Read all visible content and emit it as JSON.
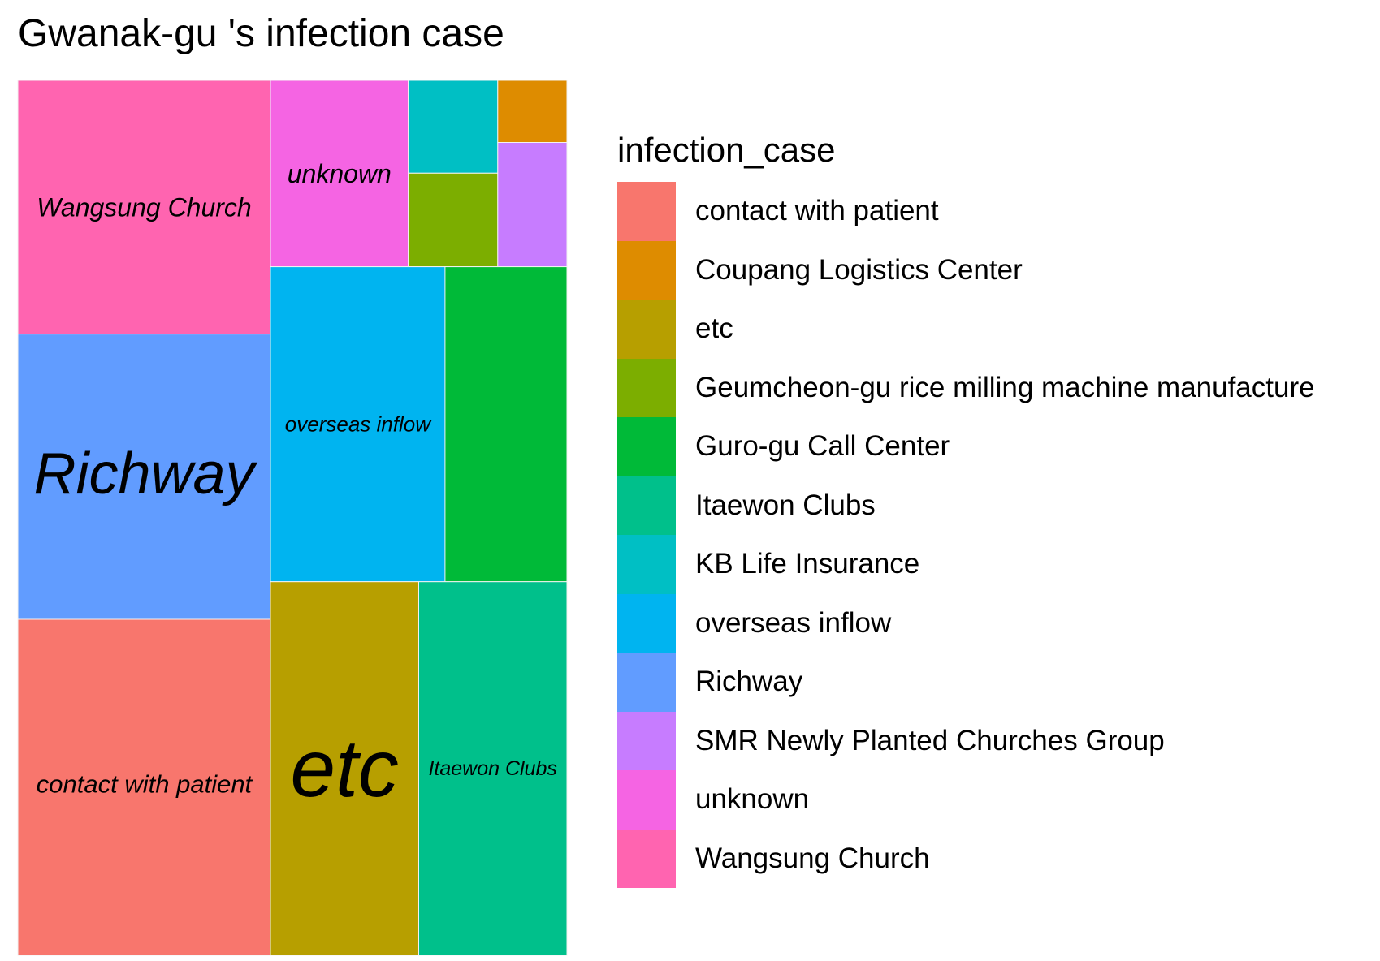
{
  "chart_data": {
    "type": "treemap",
    "title": "Gwanak-gu 's infection case",
    "legend": {
      "title": "infection_case",
      "placement": "right"
    },
    "tiles": [
      {
        "name": "contact with patient",
        "label": "contact with patient",
        "value": 24,
        "color": "#F8766D"
      },
      {
        "name": "Coupang Logistics Center",
        "label": "",
        "value": 1,
        "color": "#DE8C00"
      },
      {
        "name": "etc",
        "label": "etc",
        "value": 17,
        "color": "#B79F00"
      },
      {
        "name": "Geumcheon-gu rice milling machine manufacture",
        "label": "",
        "value": 2,
        "color": "#7CAE00"
      },
      {
        "name": "Guro-gu Call Center",
        "label": "",
        "value": 9,
        "color": "#00BA38"
      },
      {
        "name": "Itaewon Clubs",
        "label": "Itaewon Clubs",
        "value": 17,
        "color": "#00C08B"
      },
      {
        "name": "KB Life Insurance",
        "label": "",
        "value": 2,
        "color": "#00BFC4"
      },
      {
        "name": "overseas inflow",
        "label": "overseas inflow",
        "value": 13,
        "color": "#00B4F0"
      },
      {
        "name": "Richway",
        "label": "Richway",
        "value": 20,
        "color": "#619CFF"
      },
      {
        "name": "SMR Newly Planted Churches Group",
        "label": "",
        "value": 2,
        "color": "#C77CFF"
      },
      {
        "name": "unknown",
        "label": "unknown",
        "value": 5,
        "color": "#F564E3"
      },
      {
        "name": "Wangsung Church",
        "label": "Wangsung Church",
        "value": 18,
        "color": "#FF64B0"
      }
    ]
  }
}
